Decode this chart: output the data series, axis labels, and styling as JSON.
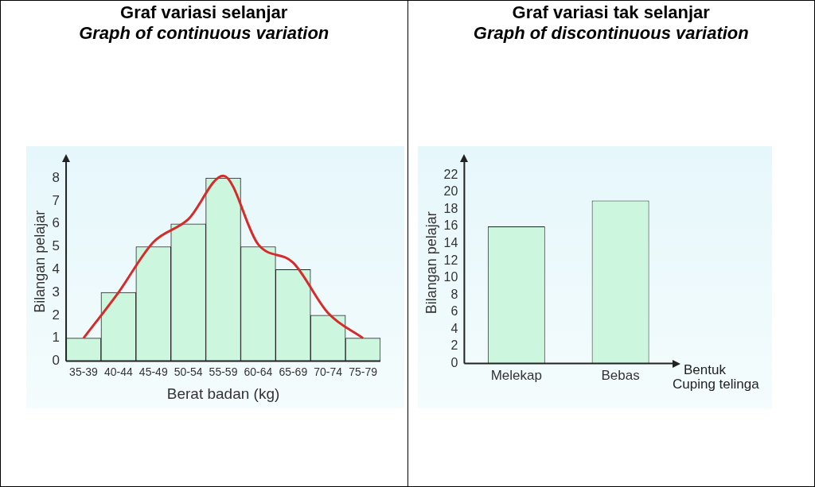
{
  "chart_data": [
    {
      "type": "bar",
      "title": "Graf variasi selanjar",
      "subtitle": "Graph of continuous variation",
      "xlabel": "Berat badan (kg)",
      "ylabel": "Bilangan pelajar",
      "categories": [
        "35-39",
        "40-44",
        "45-49",
        "50-54",
        "55-59",
        "60-64",
        "65-69",
        "70-74",
        "75-79"
      ],
      "series": [
        {
          "color": "#ccf7de",
          "values": [
            1,
            3,
            5,
            6,
            8,
            5,
            4,
            2,
            1
          ]
        },
        {
          "type": "line",
          "color": "#d62b2b",
          "values": [
            1,
            3,
            5.2,
            6.2,
            8.1,
            5.1,
            4.3,
            2.1,
            1
          ]
        }
      ],
      "ylim": [
        0,
        8.7
      ],
      "yticks": [
        0,
        1,
        2,
        3,
        4,
        5,
        6,
        7,
        8
      ],
      "grid": false,
      "legend": false,
      "marker": "none"
    },
    {
      "type": "bar",
      "title": "Graf variasi tak selanjar",
      "subtitle": "Graph of discontinuous variation",
      "xlabel": "Bentuk Cuping telinga",
      "ylabel": "Bilangan pelajar",
      "categories": [
        "Melekap",
        "Bebas"
      ],
      "series": [
        {
          "color": "#ccf7de",
          "values": [
            16,
            19
          ]
        }
      ],
      "ylim": [
        0,
        23.5
      ],
      "yticks": [
        0,
        2,
        4,
        6,
        8,
        10,
        12,
        14,
        16,
        18,
        20,
        22
      ],
      "grid": false,
      "legend": false
    }
  ]
}
